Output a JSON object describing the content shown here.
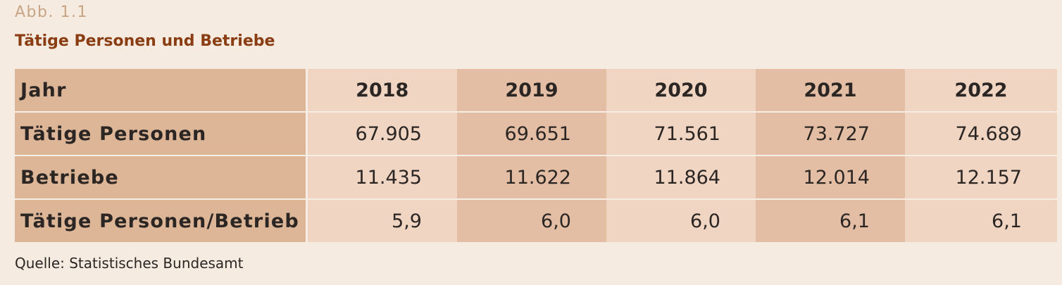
{
  "figure_label": "Abb. 1.1",
  "title": "Tätige Personen und Betriebe",
  "source": "Quelle: Statistisches Bundesamt",
  "colors": {
    "background": "#f5ebe1",
    "title": "#8a3d12",
    "figure_label": "#c9a585",
    "label_column": "#ddb597",
    "column_light": "#f0d5c3",
    "column_dark": "#e3bea4"
  },
  "chart_data": {
    "type": "table",
    "header": {
      "label": "Jahr",
      "years": [
        "2018",
        "2019",
        "2020",
        "2021",
        "2022"
      ]
    },
    "rows": [
      {
        "label": "Tätige Personen",
        "values": [
          "67.905",
          "69.651",
          "71.561",
          "73.727",
          "74.689"
        ]
      },
      {
        "label": "Betriebe",
        "values": [
          "11.435",
          "11.622",
          "11.864",
          "12.014",
          "12.157"
        ]
      },
      {
        "label": "Tätige Personen/Betrieb",
        "values": [
          "5,9",
          "6,0",
          "6,0",
          "6,1",
          "6,1"
        ]
      }
    ]
  }
}
